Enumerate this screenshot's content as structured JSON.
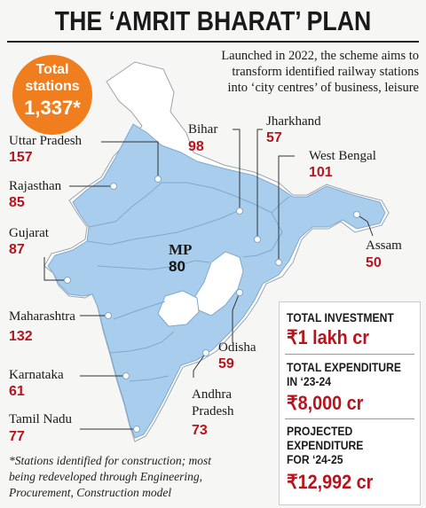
{
  "header": {
    "title": "THE ‘AMRIT BHARAT’ PLAN",
    "subtitle_lines": [
      "Launched in 2022, the scheme aims to",
      "transform identified railway stations",
      "into ‘city centres’ of business, leisure"
    ]
  },
  "badge": {
    "label_lines": [
      "Total",
      "stations"
    ],
    "value": "1,337*",
    "color": "#f07e1e"
  },
  "states": [
    {
      "name": "Uttar Pradesh",
      "value": "157"
    },
    {
      "name": "Rajasthan",
      "value": "85"
    },
    {
      "name": "Gujarat",
      "value": "87"
    },
    {
      "name": "Maharashtra",
      "value": "132"
    },
    {
      "name": "Karnataka",
      "value": "61"
    },
    {
      "name": "Tamil Nadu",
      "value": "77"
    },
    {
      "name": "Bihar",
      "value": "98"
    },
    {
      "name": "Jharkhand",
      "value": "57"
    },
    {
      "name": "West Bengal",
      "value": "101"
    },
    {
      "name": "Assam",
      "value": "50"
    },
    {
      "name": "Odisha",
      "value": "59"
    },
    {
      "name": "Andhra Pradesh",
      "name_lines": [
        "Andhra",
        "Pradesh"
      ],
      "value": "73"
    },
    {
      "name": "MP",
      "value": "80"
    }
  ],
  "panel": {
    "items": [
      {
        "head_lines": [
          "TOTAL INVESTMENT"
        ],
        "value": "₹1 lakh cr"
      },
      {
        "head_lines": [
          "TOTAL EXPENDITURE",
          "IN ‘23-24"
        ],
        "value": "₹8,000 cr"
      },
      {
        "head_lines": [
          "PROJECTED",
          "EXPENDITURE",
          "FOR ‘24-25"
        ],
        "value": "₹12,992 cr"
      }
    ]
  },
  "footnote_lines": [
    "*Stations identified for construction; most",
    "being redeveloped through Engineering,",
    "Procurement, Construction model"
  ],
  "colors": {
    "highlight_fill": "#a9cdec",
    "other_fill": "#ffffff",
    "value_red": "#b8141e",
    "accent_orange": "#f07e1e"
  }
}
